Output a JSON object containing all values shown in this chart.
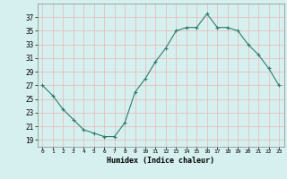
{
  "x": [
    0,
    1,
    2,
    3,
    4,
    5,
    6,
    7,
    8,
    9,
    10,
    11,
    12,
    13,
    14,
    15,
    16,
    17,
    18,
    19,
    20,
    21,
    22,
    23
  ],
  "y": [
    27,
    25.5,
    23.5,
    22,
    20.5,
    20,
    19.5,
    19.5,
    21.5,
    26,
    28,
    30.5,
    32.5,
    35,
    35.5,
    35.5,
    37.5,
    35.5,
    35.5,
    35,
    33,
    31.5,
    29.5,
    27
  ],
  "line_color": "#2e7d6e",
  "marker": "+",
  "marker_size": 3,
  "bg_color": "#d6efef",
  "grid_color": "#b0d8d8",
  "xlabel": "Humidex (Indice chaleur)",
  "ylim": [
    18,
    39
  ],
  "xlim": [
    -0.5,
    23.5
  ],
  "yticks": [
    19,
    21,
    23,
    25,
    27,
    29,
    31,
    33,
    35,
    37
  ],
  "xticks": [
    0,
    1,
    2,
    3,
    4,
    5,
    6,
    7,
    8,
    9,
    10,
    11,
    12,
    13,
    14,
    15,
    16,
    17,
    18,
    19,
    20,
    21,
    22,
    23
  ]
}
